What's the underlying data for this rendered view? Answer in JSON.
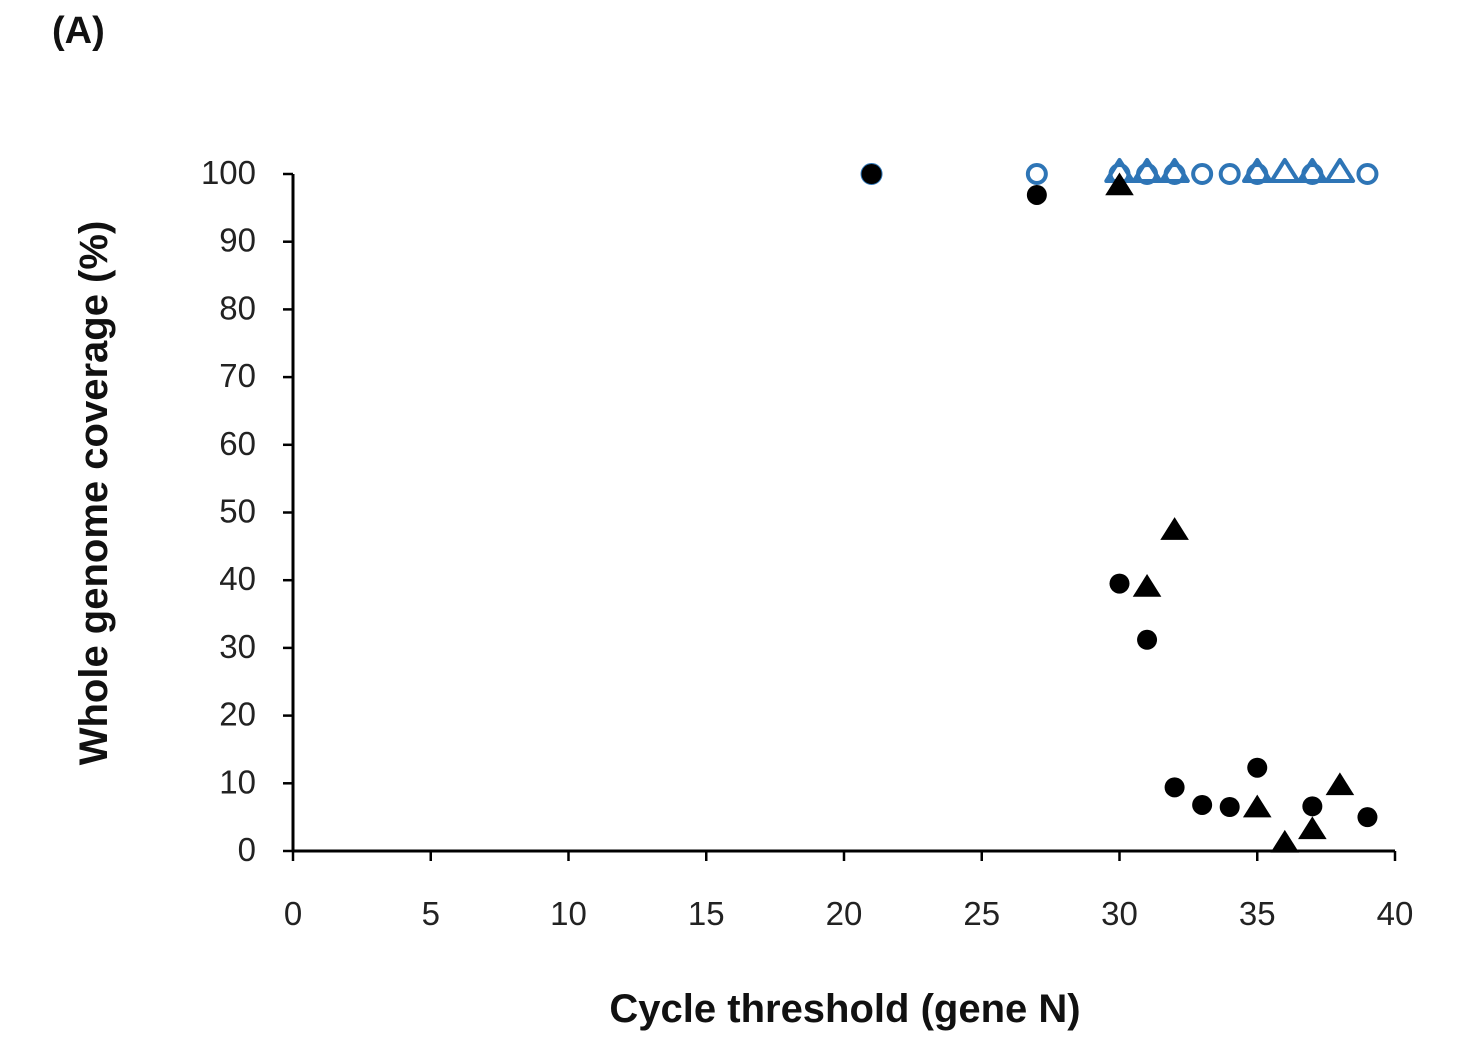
{
  "panel_label": "(A)",
  "chart_data": {
    "type": "scatter",
    "title": "",
    "xlabel": "Cycle threshold (gene N)",
    "ylabel": "Whole genome coverage (%)",
    "xlim": [
      0,
      40
    ],
    "ylim": [
      0,
      100
    ],
    "xticks": [
      0,
      5,
      10,
      15,
      20,
      25,
      30,
      35,
      40
    ],
    "yticks": [
      0,
      10,
      20,
      30,
      40,
      50,
      60,
      70,
      80,
      90,
      100
    ],
    "grid": false,
    "legend": "none",
    "series": [
      {
        "marker": "open-circle",
        "color": "#2e75b6",
        "x": [
          21,
          27,
          30,
          31,
          32,
          33,
          34,
          35,
          37,
          39
        ],
        "y": [
          100,
          100,
          100,
          100,
          100,
          100,
          100,
          100,
          100,
          100
        ]
      },
      {
        "marker": "open-triangle",
        "color": "#2e75b6",
        "x": [
          30,
          31,
          32,
          35,
          36,
          37,
          38
        ],
        "y": [
          100,
          100,
          100,
          100,
          100,
          100,
          100
        ]
      },
      {
        "marker": "filled-circle",
        "color": "#000000",
        "x": [
          21,
          27,
          30,
          31,
          32,
          33,
          34,
          35,
          37,
          39
        ],
        "y": [
          100,
          96.9,
          39.5,
          31.2,
          9.4,
          6.8,
          6.5,
          12.3,
          6.6,
          5.0
        ]
      },
      {
        "marker": "filled-triangle",
        "color": "#000000",
        "x": [
          30,
          31,
          32,
          35,
          36,
          37,
          38
        ],
        "y": [
          98.3,
          39,
          47.4,
          6.4,
          1.2,
          3.2,
          9.7
        ]
      }
    ]
  }
}
